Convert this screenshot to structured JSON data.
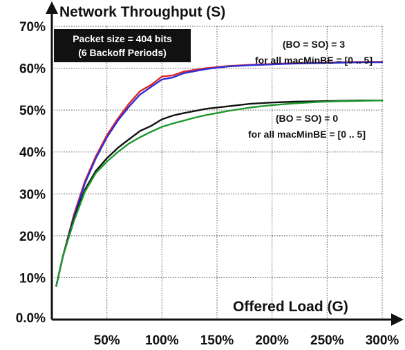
{
  "chart_data": {
    "type": "line",
    "title": "",
    "ylabel": "Network Throughput (S)",
    "xlabel": "Offered Load (G)",
    "xlim": [
      0,
      300
    ],
    "ylim": [
      0,
      70
    ],
    "x_unit": "%",
    "y_unit": "%",
    "xticks": [
      {
        "value": 50,
        "label": "50%"
      },
      {
        "value": 100,
        "label": "100%"
      },
      {
        "value": 150,
        "label": "150%"
      },
      {
        "value": 200,
        "label": "200%"
      },
      {
        "value": 250,
        "label": "250%"
      },
      {
        "value": 300,
        "label": "300%"
      }
    ],
    "yticks": [
      {
        "value": 0,
        "label": "0.0%"
      },
      {
        "value": 10,
        "label": "10%"
      },
      {
        "value": 20,
        "label": "20%"
      },
      {
        "value": 30,
        "label": "30%"
      },
      {
        "value": 40,
        "label": "40%"
      },
      {
        "value": 50,
        "label": "50%"
      },
      {
        "value": 60,
        "label": "60%"
      },
      {
        "value": 70,
        "label": "70%"
      }
    ],
    "grid": {
      "horizontal": true,
      "vertical": true,
      "style": "dotted"
    },
    "series": [
      {
        "color": "#e0262a",
        "x": [
          4,
          10,
          20,
          30,
          40,
          50,
          60,
          70,
          80,
          90,
          100,
          110,
          120,
          140,
          160,
          180,
          200,
          220,
          240,
          260,
          280,
          300
        ],
        "y": [
          8,
          15,
          25,
          33,
          39,
          44,
          48,
          51.5,
          54.5,
          56,
          58,
          58.3,
          59.2,
          60,
          60.5,
          60.8,
          61,
          61.2,
          61.3,
          61.4,
          61.5,
          61.5
        ]
      },
      {
        "color": "#2b2fd6",
        "x": [
          4,
          10,
          20,
          30,
          40,
          50,
          60,
          70,
          80,
          90,
          100,
          110,
          120,
          140,
          160,
          180,
          200,
          220,
          240,
          260,
          280,
          300
        ],
        "y": [
          8,
          15,
          24.5,
          32.5,
          38.5,
          43.5,
          47.5,
          50.8,
          53.7,
          55.5,
          57.3,
          57.8,
          58.8,
          59.8,
          60.4,
          60.7,
          60.9,
          61.1,
          61.2,
          61.3,
          61.4,
          61.4
        ]
      },
      {
        "color": "#111111",
        "x": [
          4,
          10,
          20,
          30,
          40,
          50,
          60,
          70,
          80,
          90,
          100,
          110,
          120,
          130,
          140,
          160,
          180,
          200,
          220,
          240,
          260,
          280,
          300
        ],
        "y": [
          8,
          15,
          24,
          31,
          35.5,
          38.5,
          41,
          43,
          45,
          46.2,
          47.8,
          48.7,
          49.3,
          49.8,
          50.3,
          50.9,
          51.5,
          51.8,
          52,
          52.1,
          52.2,
          52.3,
          52.3
        ]
      },
      {
        "color": "#1d9a2f",
        "x": [
          4,
          10,
          20,
          30,
          40,
          50,
          60,
          70,
          80,
          90,
          100,
          110,
          120,
          130,
          140,
          160,
          180,
          200,
          220,
          240,
          260,
          280,
          300
        ],
        "y": [
          8,
          15,
          23.5,
          30.5,
          35,
          37.7,
          40,
          42,
          43.5,
          44.8,
          46,
          46.8,
          47.5,
          48.2,
          48.8,
          49.8,
          50.6,
          51.2,
          51.6,
          51.9,
          52.1,
          52.2,
          52.3
        ]
      }
    ],
    "annotations": [
      {
        "lines": [
          "(BO = SO) = 3",
          "for all macMinBE = [0 .. 5]"
        ]
      },
      {
        "lines": [
          "(BO = SO) = 0",
          "for all macMinBE = [0 .. 5]"
        ]
      }
    ],
    "note_box": {
      "lines": [
        "Packet size = 404 bits",
        "(6 Backoff Periods)"
      ],
      "background": "#111111",
      "text_color": "#ffffff"
    },
    "colors": {
      "axis": "#111111",
      "grid": "#555555"
    }
  }
}
